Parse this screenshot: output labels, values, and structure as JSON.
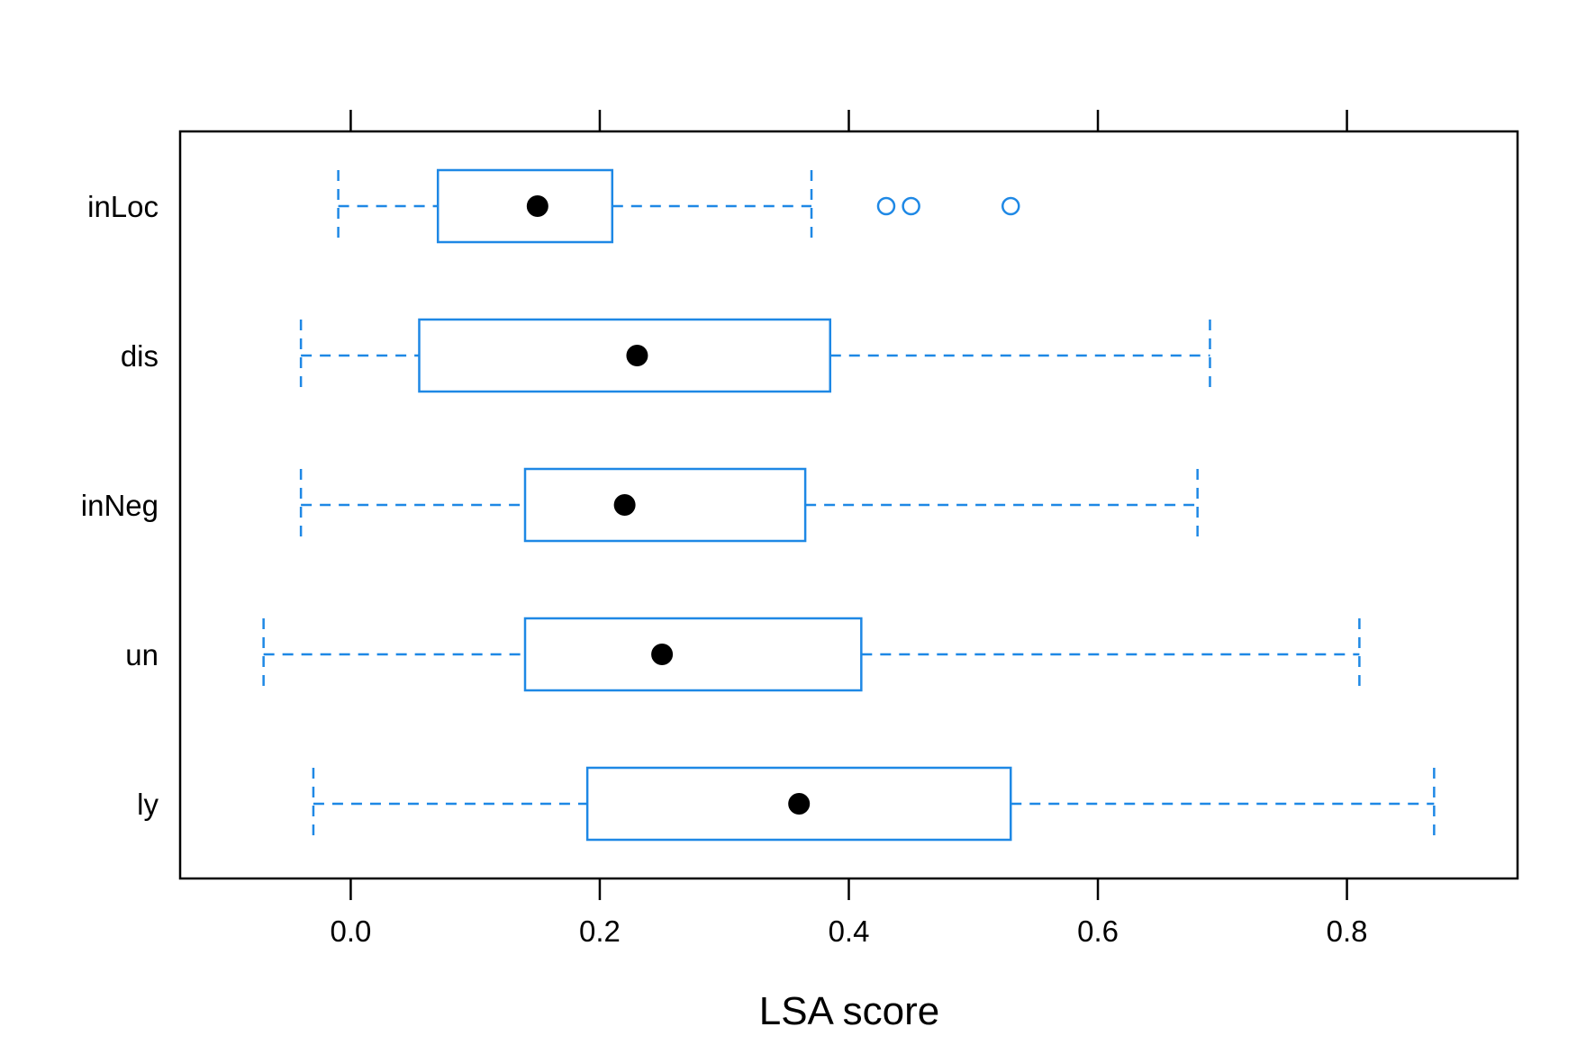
{
  "chart_data": {
    "type": "boxplot",
    "orientation": "horizontal",
    "xlabel": "LSA score",
    "xlim": [
      -0.137,
      0.937
    ],
    "xticks": [
      "0.0",
      "0.2",
      "0.4",
      "0.6",
      "0.8"
    ],
    "xtick_values": [
      0.0,
      0.2,
      0.4,
      0.6,
      0.8
    ],
    "categories": [
      "inLoc",
      "dis",
      "inNeg",
      "un",
      "ly"
    ],
    "series": [
      {
        "category": "inLoc",
        "whisker_low": -0.01,
        "q1": 0.07,
        "median": 0.15,
        "q3": 0.21,
        "whisker_high": 0.37,
        "outliers": [
          0.43,
          0.45,
          0.53
        ]
      },
      {
        "category": "dis",
        "whisker_low": -0.04,
        "q1": 0.055,
        "median": 0.23,
        "q3": 0.385,
        "whisker_high": 0.69,
        "outliers": []
      },
      {
        "category": "inNeg",
        "whisker_low": -0.04,
        "q1": 0.14,
        "median": 0.22,
        "q3": 0.365,
        "whisker_high": 0.68,
        "outliers": []
      },
      {
        "category": "un",
        "whisker_low": -0.07,
        "q1": 0.14,
        "median": 0.25,
        "q3": 0.41,
        "whisker_high": 0.81,
        "outliers": []
      },
      {
        "category": "ly",
        "whisker_low": -0.03,
        "q1": 0.19,
        "median": 0.36,
        "q3": 0.53,
        "whisker_high": 0.87,
        "outliers": []
      }
    ],
    "box_color": "#1E88E5",
    "median_color": "#000000",
    "grid": false,
    "ticks_top": true
  }
}
